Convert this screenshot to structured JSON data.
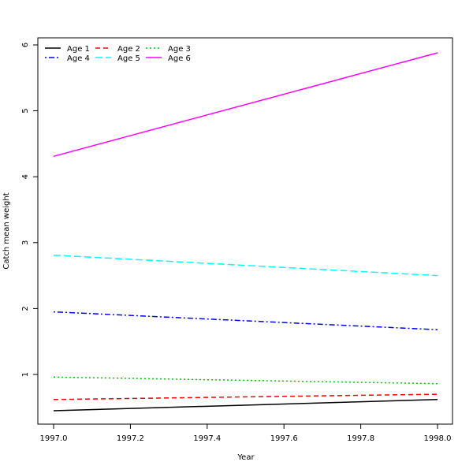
{
  "chart_data": {
    "type": "line",
    "xlabel": "Year",
    "ylabel": "Catch mean weight",
    "xlim": [
      1997.0,
      1998.0
    ],
    "ylim": [
      0.2,
      6.1
    ],
    "x_ticks": [
      "1997.0",
      "1997.2",
      "1997.4",
      "1997.6",
      "1997.8",
      "1998.0"
    ],
    "y_ticks": [
      "1",
      "2",
      "3",
      "4",
      "5",
      "6"
    ],
    "legend_position": "top-left",
    "grid": false,
    "x": [
      1997.0,
      1998.0
    ],
    "series": [
      {
        "name": "Age 1",
        "values": [
          0.45,
          0.62
        ],
        "color": "#000000",
        "dash": "solid"
      },
      {
        "name": "Age 2",
        "values": [
          0.62,
          0.7
        ],
        "color": "#ff0000",
        "dash": "dashed"
      },
      {
        "name": "Age 3",
        "values": [
          0.96,
          0.86
        ],
        "color": "#00cd00",
        "dash": "dotted"
      },
      {
        "name": "Age 4",
        "values": [
          1.95,
          1.68
        ],
        "color": "#0000ff",
        "dash": "dotdash"
      },
      {
        "name": "Age 5",
        "values": [
          2.81,
          2.5
        ],
        "color": "#00ffff",
        "dash": "longdash"
      },
      {
        "name": "Age 6",
        "values": [
          4.31,
          5.88
        ],
        "color": "#ff00ff",
        "dash": "solid"
      }
    ]
  }
}
